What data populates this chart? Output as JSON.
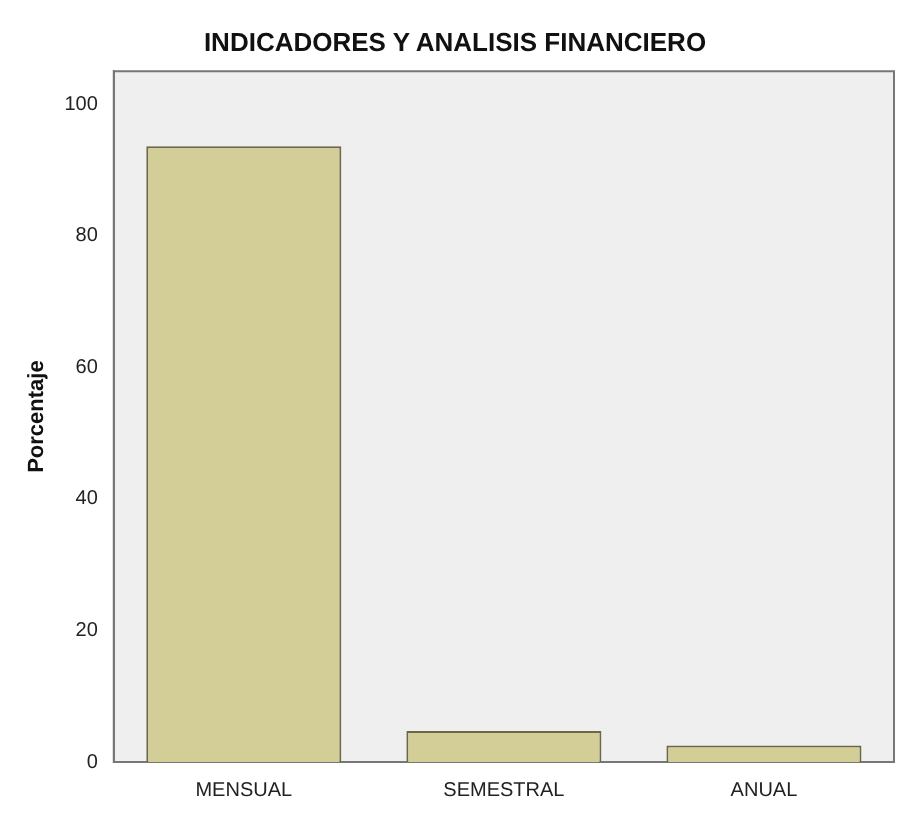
{
  "chart_data": {
    "type": "bar",
    "title": "INDICADORES Y ANALISIS FINANCIERO",
    "ylabel": "Porcentaje",
    "categories": [
      "MENSUAL",
      "SEMESTRAL",
      "ANUAL"
    ],
    "values": [
      93.6,
      4.7,
      2.5
    ],
    "color": "#d3ce98",
    "ylim": [
      0,
      105
    ],
    "yticks": [
      0,
      20,
      40,
      60,
      80,
      100
    ],
    "grid": false,
    "legend": false
  }
}
